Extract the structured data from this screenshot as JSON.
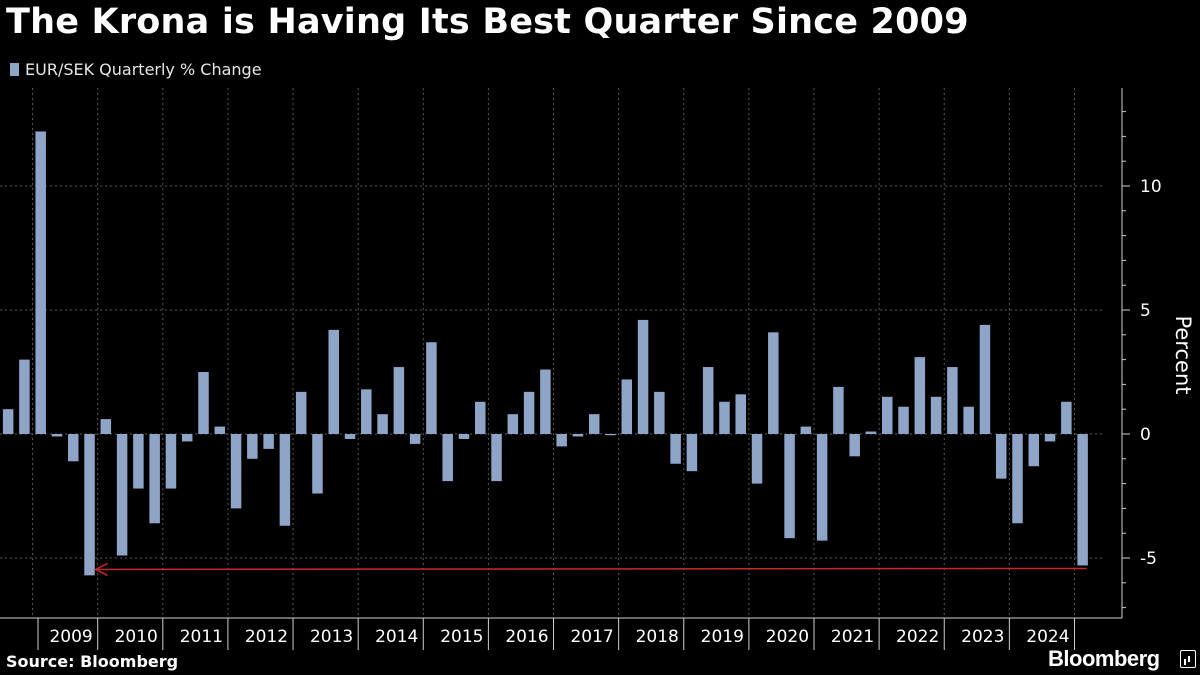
{
  "title": "The Krona is Having Its Best Quarter Since 2009",
  "source": "Source: Bloomberg",
  "brand": "Bloomberg",
  "legend_label": "EUR/SEK Quarterly % Change",
  "colors": {
    "bar": "#8ea5c8",
    "background": "#000000",
    "arrow": "#c8282d",
    "grid": "#5a5a5a"
  },
  "chart_data": {
    "type": "bar",
    "series": [
      {
        "name": "EUR/SEK Quarterly % Change",
        "values": [
          1.0,
          3.0,
          12.2,
          -0.1,
          -1.1,
          -5.7,
          0.6,
          -4.9,
          -2.2,
          -3.6,
          -2.2,
          -0.3,
          2.5,
          0.3,
          -3.0,
          -1.0,
          -0.6,
          -3.7,
          1.7,
          -2.4,
          4.2,
          -0.2,
          1.8,
          0.8,
          2.7,
          -0.4,
          3.7,
          -1.9,
          -0.2,
          1.3,
          -1.9,
          0.8,
          1.7,
          2.6,
          -0.5,
          -0.1,
          0.8,
          -0.05,
          2.2,
          4.6,
          1.7,
          -1.2,
          -1.5,
          2.7,
          1.3,
          1.6,
          -2.0,
          4.1,
          -4.2,
          0.3,
          -4.3,
          1.9,
          -0.9,
          0.1,
          1.5,
          1.1,
          3.1,
          1.5,
          2.7,
          1.1,
          4.4,
          -1.8,
          -3.6,
          -1.3,
          -0.3,
          1.3,
          -5.3
        ]
      }
    ],
    "year_labels": [
      "2009",
      "2010",
      "2011",
      "2012",
      "2013",
      "2014",
      "2015",
      "2016",
      "2017",
      "2018",
      "2019",
      "2020",
      "2021",
      "2022",
      "2023",
      "2024"
    ],
    "yticks": [
      "10",
      "5",
      "0",
      "-5"
    ],
    "ylabel": "Percent",
    "ylim": [
      -7.4,
      13.8
    ],
    "grid": true,
    "annotation": "arrow from latest quarter back to the Q1 2009 low"
  }
}
